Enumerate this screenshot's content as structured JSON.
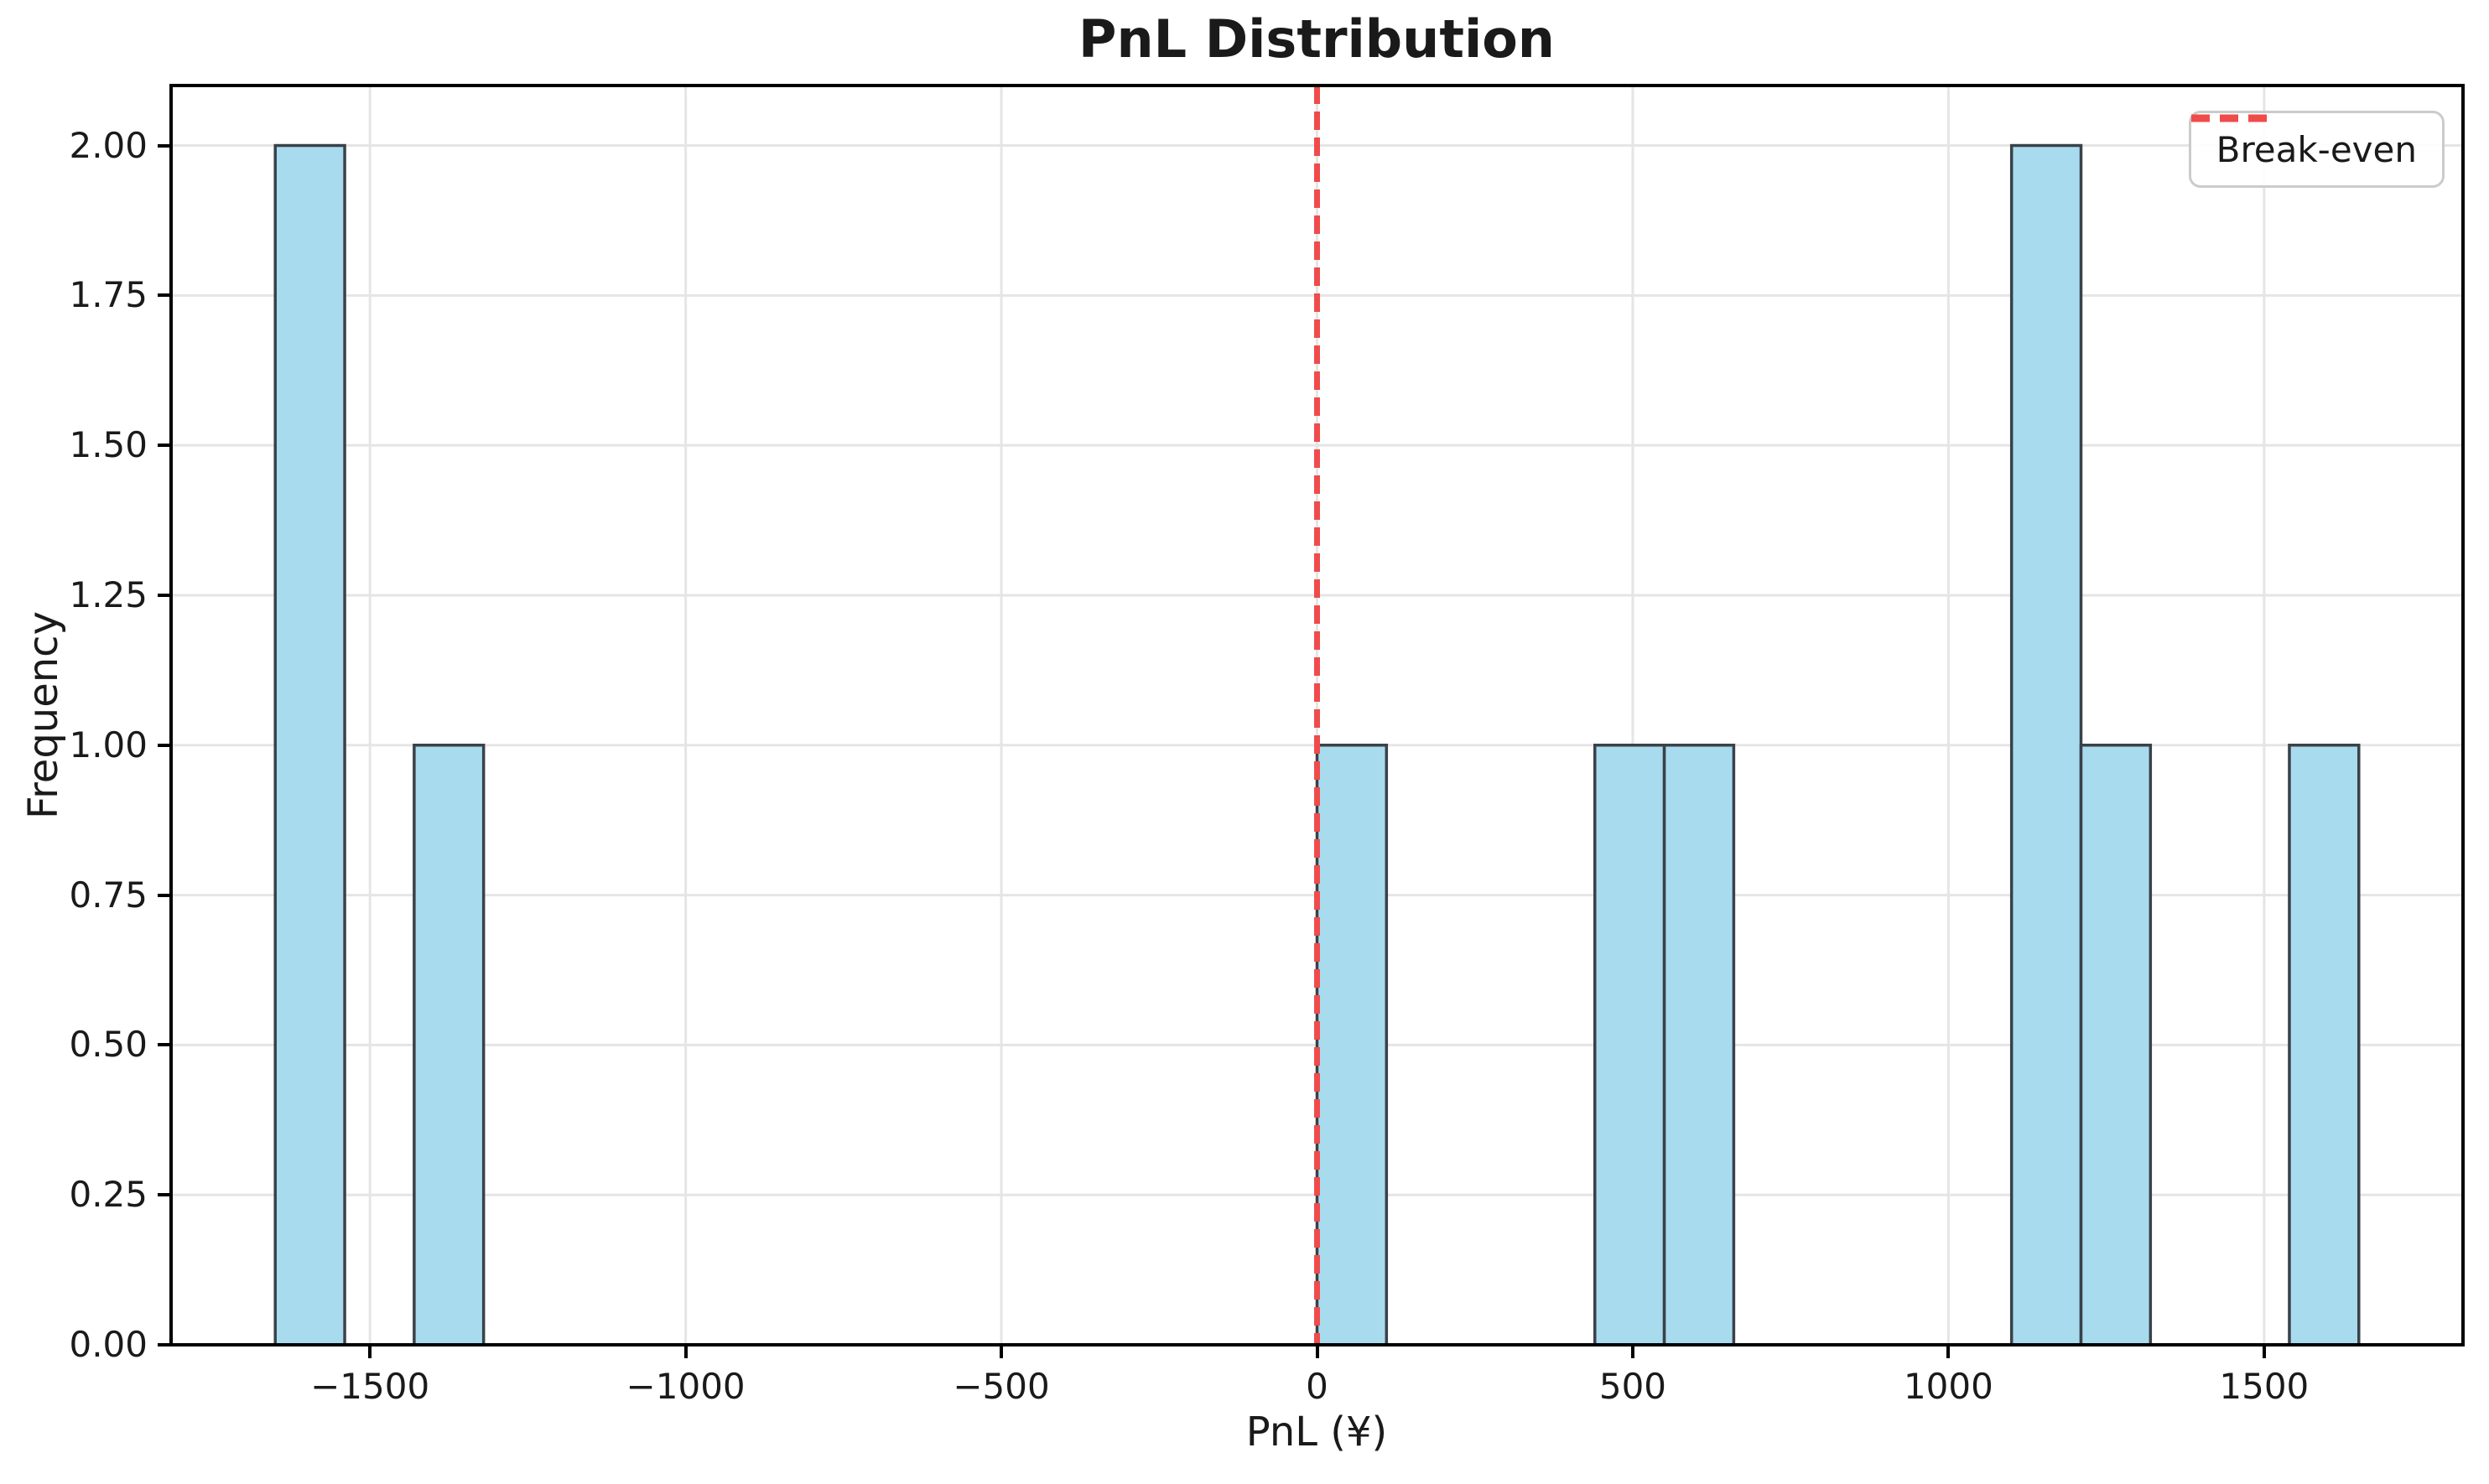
{
  "chart_data": {
    "type": "histogram",
    "title": "PnL Distribution",
    "xlabel": "PnL (¥)",
    "ylabel": "Frequency",
    "xlim": [
      -1815,
      1815
    ],
    "ylim": [
      0,
      2.1
    ],
    "grid": true,
    "bin_width": 110,
    "total_count": 10,
    "bins": [
      {
        "range": [
          -1650,
          -1540
        ],
        "count": 2
      },
      {
        "range": [
          -1430,
          -1320
        ],
        "count": 1
      },
      {
        "range": [
          0,
          110
        ],
        "count": 1
      },
      {
        "range": [
          440,
          550
        ],
        "count": 1
      },
      {
        "range": [
          550,
          660
        ],
        "count": 1
      },
      {
        "range": [
          1100,
          1210
        ],
        "count": 2
      },
      {
        "range": [
          1210,
          1320
        ],
        "count": 1
      },
      {
        "range": [
          1540,
          1650
        ],
        "count": 1
      }
    ],
    "xticks": [
      {
        "value": -1500,
        "label": "−1500"
      },
      {
        "value": -1000,
        "label": "−1000"
      },
      {
        "value": -500,
        "label": "−500"
      },
      {
        "value": 0,
        "label": "0"
      },
      {
        "value": 500,
        "label": "500"
      },
      {
        "value": 1000,
        "label": "1000"
      },
      {
        "value": 1500,
        "label": "1500"
      }
    ],
    "yticks": [
      {
        "value": 0.0,
        "label": "0.00"
      },
      {
        "value": 0.25,
        "label": "0.25"
      },
      {
        "value": 0.5,
        "label": "0.50"
      },
      {
        "value": 0.75,
        "label": "0.75"
      },
      {
        "value": 1.0,
        "label": "1.00"
      },
      {
        "value": 1.25,
        "label": "1.25"
      },
      {
        "value": 1.5,
        "label": "1.50"
      },
      {
        "value": 1.75,
        "label": "1.75"
      },
      {
        "value": 2.0,
        "label": "2.00"
      }
    ],
    "breakeven_line": {
      "value": 0,
      "style": "dashed",
      "label": "Break-even"
    },
    "legend": {
      "position": "upper right",
      "entries": [
        {
          "label": "Break-even",
          "style": "dashed",
          "color": "#F04B4B"
        }
      ]
    },
    "colors": {
      "bar_fill": "#A8DBEE",
      "bar_edge": "#3A4149",
      "breakeven": "#F04B4B",
      "grid": "#E5E5E5",
      "spine": "#000000",
      "text": "#1A1A1A",
      "legend_border": "#CBCBCB"
    }
  }
}
